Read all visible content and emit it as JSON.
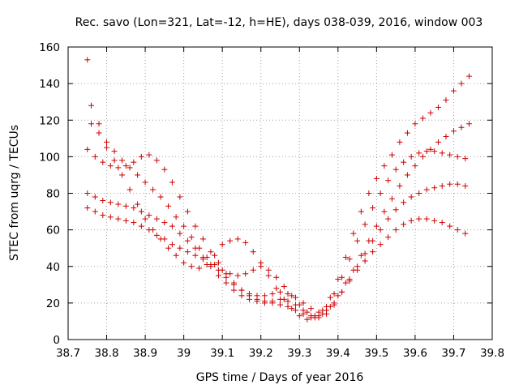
{
  "chart_data": {
    "type": "scatter",
    "title": "Rec. savo (Lon=321, Lat=-12, h=HE), days 038-039, 2016, window 003",
    "xlabel": "GPS time / Days of year 2016",
    "ylabel": "STEC from uqrg / TECUs",
    "xlim": [
      38.7,
      39.8
    ],
    "ylim": [
      0,
      160
    ],
    "xticks": [
      "38.7",
      "38.8",
      "38.9",
      "39",
      "39.1",
      "39.2",
      "39.3",
      "39.4",
      "39.5",
      "39.6",
      "39.7",
      "39.8"
    ],
    "yticks": [
      "0",
      "20",
      "40",
      "60",
      "80",
      "100",
      "120",
      "140",
      "160"
    ],
    "grid": true,
    "marker": "+",
    "color": "#cc0000",
    "series": [
      {
        "x": [
          38.75,
          38.76,
          38.78,
          38.8,
          38.82,
          38.84,
          38.86,
          38.88,
          38.9,
          38.92,
          38.94,
          38.96,
          38.98,
          39.0,
          39.02,
          39.04,
          39.06,
          39.08,
          39.1,
          39.12,
          39.14,
          39.16,
          39.18,
          39.2,
          39.22,
          39.24,
          39.26,
          39.28,
          39.3,
          39.32,
          39.34,
          39.36,
          39.38,
          39.4,
          39.42,
          39.44,
          39.46,
          39.48,
          39.5,
          39.52,
          39.54,
          39.56,
          39.58,
          39.6,
          39.62,
          39.64,
          39.66,
          39.68,
          39.7,
          39.72,
          39.74
        ],
        "y": [
          153,
          128,
          118,
          105,
          98,
          90,
          82,
          74,
          66,
          60,
          55,
          50,
          46,
          42,
          40,
          39,
          41,
          46,
          52,
          54,
          55,
          53,
          48,
          42,
          35,
          28,
          22,
          17,
          13,
          11,
          12,
          16,
          23,
          33,
          45,
          58,
          70,
          80,
          88,
          95,
          101,
          108,
          113,
          118,
          121,
          124,
          127,
          131,
          136,
          140,
          144
        ]
      },
      {
        "x": [
          38.75,
          38.77,
          38.79,
          38.81,
          38.83,
          38.85,
          38.87,
          38.89,
          38.91,
          38.93,
          38.95,
          38.97,
          38.99,
          39.01,
          39.03,
          39.05,
          39.07,
          39.09,
          39.11,
          39.13,
          39.15,
          39.17,
          39.19,
          39.21,
          39.23,
          39.25,
          39.27,
          39.29,
          39.31,
          39.33,
          39.35,
          39.37,
          39.39,
          39.41,
          39.43,
          39.45,
          39.47,
          39.49,
          39.51,
          39.53,
          39.55,
          39.57,
          39.59,
          39.61,
          39.63,
          39.65,
          39.67,
          39.69,
          39.71,
          39.73
        ],
        "y": [
          104,
          100,
          97,
          95,
          94,
          95,
          97,
          100,
          101,
          98,
          93,
          86,
          78,
          70,
          62,
          55,
          48,
          42,
          36,
          31,
          27,
          24,
          22,
          21,
          20,
          19,
          18,
          16,
          14,
          12,
          13,
          18,
          25,
          34,
          44,
          54,
          63,
          72,
          80,
          87,
          93,
          97,
          100,
          102,
          103,
          103,
          102,
          101,
          100,
          99
        ]
      },
      {
        "x": [
          38.75,
          38.77,
          38.79,
          38.81,
          38.83,
          38.85,
          38.87,
          38.89,
          38.91,
          38.93,
          38.95,
          38.97,
          38.99,
          39.01,
          39.03,
          39.05,
          39.07,
          39.09,
          39.11,
          39.13,
          39.15,
          39.17,
          39.19,
          39.21,
          39.23,
          39.25,
          39.27,
          39.29,
          39.31,
          39.33,
          39.35,
          39.37,
          39.39,
          39.41,
          39.43,
          39.45,
          39.47,
          39.49,
          39.51,
          39.53,
          39.55,
          39.57,
          39.59,
          39.61,
          39.63,
          39.65,
          39.67,
          39.69,
          39.71,
          39.73
        ],
        "y": [
          80,
          78,
          76,
          75,
          74,
          73,
          72,
          70,
          68,
          66,
          64,
          62,
          58,
          54,
          50,
          45,
          40,
          35,
          31,
          27,
          24,
          22,
          21,
          20,
          21,
          22,
          21,
          19,
          16,
          13,
          12,
          14,
          19,
          26,
          33,
          40,
          47,
          54,
          60,
          66,
          71,
          75,
          78,
          80,
          82,
          83,
          84,
          85,
          85,
          84
        ]
      },
      {
        "x": [
          38.75,
          38.77,
          38.79,
          38.81,
          38.83,
          38.85,
          38.87,
          38.89,
          38.91,
          38.93,
          38.95,
          38.97,
          38.99,
          39.01,
          39.03,
          39.05,
          39.07,
          39.09,
          39.11,
          39.13,
          39.15,
          39.17,
          39.19,
          39.21,
          39.23,
          39.25,
          39.27,
          39.29,
          39.31,
          39.33,
          39.35,
          39.37,
          39.39,
          39.41,
          39.43,
          39.45,
          39.47,
          39.49,
          39.51,
          39.53,
          39.55,
          39.57,
          39.59,
          39.61,
          39.63,
          39.65,
          39.67,
          39.69,
          39.71,
          39.73
        ],
        "y": [
          72,
          70,
          68,
          67,
          66,
          65,
          64,
          62,
          60,
          57,
          55,
          52,
          50,
          48,
          46,
          44,
          41,
          38,
          34,
          30,
          27,
          25,
          24,
          24,
          25,
          26,
          25,
          23,
          20,
          17,
          15,
          16,
          20,
          26,
          32,
          38,
          43,
          48,
          52,
          56,
          60,
          63,
          65,
          66,
          66,
          65,
          64,
          62,
          60,
          58
        ]
      },
      {
        "x": [
          38.76,
          38.78,
          38.8,
          38.82,
          38.84,
          38.86,
          38.88,
          38.9,
          38.92,
          38.94,
          38.96,
          38.98,
          39.0,
          39.02,
          39.04,
          39.06,
          39.08,
          39.1,
          39.12,
          39.14,
          39.16,
          39.18,
          39.2,
          39.22,
          39.24,
          39.26,
          39.28,
          39.3,
          39.32,
          39.34,
          39.36,
          39.38,
          39.4,
          39.42,
          39.44,
          39.46,
          39.48,
          39.5,
          39.52,
          39.54,
          39.56,
          39.58,
          39.6,
          39.62,
          39.64,
          39.66,
          39.68,
          39.7,
          39.72,
          39.74
        ],
        "y": [
          118,
          113,
          108,
          103,
          98,
          94,
          90,
          86,
          82,
          78,
          73,
          67,
          62,
          56,
          50,
          45,
          41,
          38,
          36,
          35,
          36,
          38,
          40,
          38,
          34,
          29,
          24,
          19,
          15,
          13,
          14,
          18,
          24,
          31,
          38,
          46,
          54,
          62,
          70,
          77,
          84,
          90,
          95,
          100,
          104,
          108,
          111,
          114,
          116,
          118
        ]
      }
    ]
  }
}
